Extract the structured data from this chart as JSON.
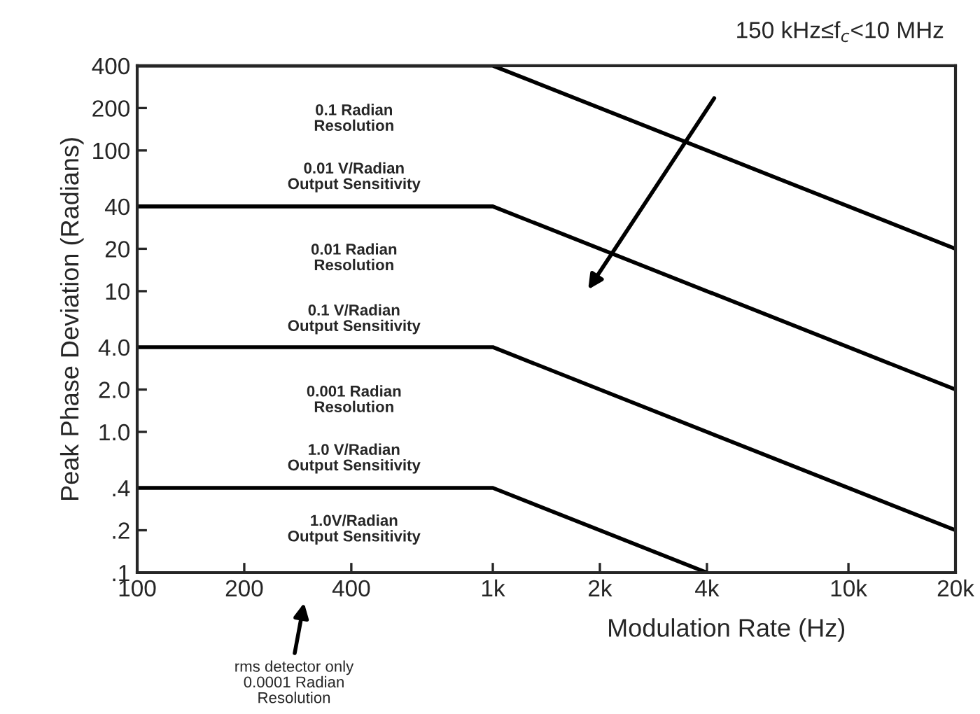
{
  "chart_data": {
    "type": "line",
    "xlabel": "Modulation Rate (Hz)",
    "ylabel": "Peak Phase Deviation (Radians)",
    "log": "xy",
    "xlim": [
      100,
      20000
    ],
    "ylim": [
      0.1,
      400
    ],
    "xticks": [
      100,
      200,
      400,
      {
        "value": 1000,
        "label": "1k"
      },
      {
        "value": 2000,
        "label": "2k"
      },
      {
        "value": 4000,
        "label": "4k"
      },
      {
        "value": 10000,
        "label": "10k"
      },
      {
        "value": 20000,
        "label": "20k"
      }
    ],
    "yticks": [
      400,
      200,
      100,
      40,
      20,
      10,
      {
        "value": 4,
        "label": "4.0"
      },
      {
        "value": 2,
        "label": "2.0"
      },
      {
        "value": 1,
        "label": "1.0"
      },
      {
        "value": 0.4,
        "label": ".4"
      },
      {
        "value": 0.2,
        "label": ".2"
      },
      {
        "value": 0.1,
        "label": ".1"
      }
    ],
    "grid": false,
    "legend": false,
    "marker": "none",
    "line_style": "solid",
    "series": [
      {
        "color": "#000000",
        "x": [
          100,
          1000,
          20000
        ],
        "values": [
          400,
          400,
          20
        ]
      },
      {
        "color": "#000000",
        "x": [
          100,
          1000,
          20000
        ],
        "values": [
          40,
          40,
          2
        ]
      },
      {
        "color": "#000000",
        "x": [
          100,
          1000,
          20000
        ],
        "values": [
          4,
          4,
          0.2
        ]
      },
      {
        "color": "#000000",
        "x": [
          100,
          1000,
          4000
        ],
        "values": [
          0.4,
          0.4,
          0.1
        ]
      }
    ],
    "annotations": [
      "0.1 Radian\nResolution",
      "0.01 V/Radian\nOutput Sensitivity",
      "0.01 Radian\nResolution",
      "0.1 V/Radian\nOutput Sensitivity",
      "0.001 Radian\nResolution",
      "1.0 V/Radian\nOutput Sensitivity",
      "1.0V/Radian\nOutput Sensitivity",
      "150 kHz≤f$_{c}$<10 MHz",
      "rms detector only\n0.0001 Radian\nResolution"
    ]
  }
}
